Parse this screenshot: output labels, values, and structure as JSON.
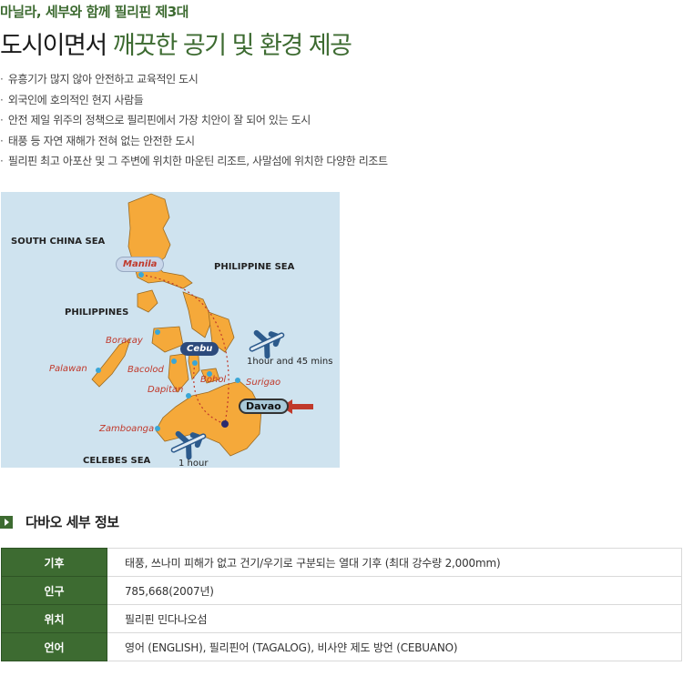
{
  "header": {
    "subtitle": "마닐라, 세부와 함께 필리핀 제3대",
    "title_plain": "도시이면서 ",
    "title_highlight": "깨끗한 공기 및 환경 제공"
  },
  "bullets": [
    "유흥기가 많지 않아 안전하고 교육적인 도시",
    "외국인에 호의적인 현지 사람들",
    "안전 제일 위주의 정책으로 필리핀에서 가장 치안이 잘 되어 있는 도시",
    "태풍 등 자연 재해가 전혀 없는 안전한 도시",
    "필리핀 최고 아포산 및 그 주변에 위치한 마운틴 리조트, 사말섬에 위치한 다양한 리조트"
  ],
  "bullet_marker": "·",
  "map": {
    "seas": {
      "south_china": "SOUTH CHINA SEA",
      "philippine": "PHILIPPINE SEA",
      "celebes": "CELEBES SEA"
    },
    "country": "PHILIPPINES",
    "cities": {
      "manila": "Manila",
      "cebu": "Cebu",
      "davao": "Davao",
      "boracay": "Boracay",
      "palawan": "Palawan",
      "bacolod": "Bacolod",
      "bohol": "Bohol",
      "dapitan": "Dapitan",
      "surigao": "Surigao",
      "zamboanga": "Zamboanga"
    },
    "flight_times": {
      "manila_davao": "1hour and 45 mins",
      "cebu_davao": "1 hour"
    },
    "colors": {
      "sea": "#cfe3ef",
      "land": "#f5a93a",
      "accent": "#c0392b"
    }
  },
  "section": {
    "title": "다바오 세부 정보",
    "rows": [
      {
        "key": "기후",
        "value": "태풍, 쓰나미 피해가 없고 건기/우기로 구분되는 열대 기후 (최대 강수량 2,000mm)"
      },
      {
        "key": "인구",
        "value": "785,668(2007년)"
      },
      {
        "key": "위치",
        "value": "필리핀 민다나오섬"
      },
      {
        "key": "언어",
        "value": "영어 (ENGLISH), 필리핀어 (TAGALOG), 비사얀 제도 방언 (CEBUANO)"
      }
    ]
  },
  "theme": {
    "brand_green": "#3d6b31"
  }
}
